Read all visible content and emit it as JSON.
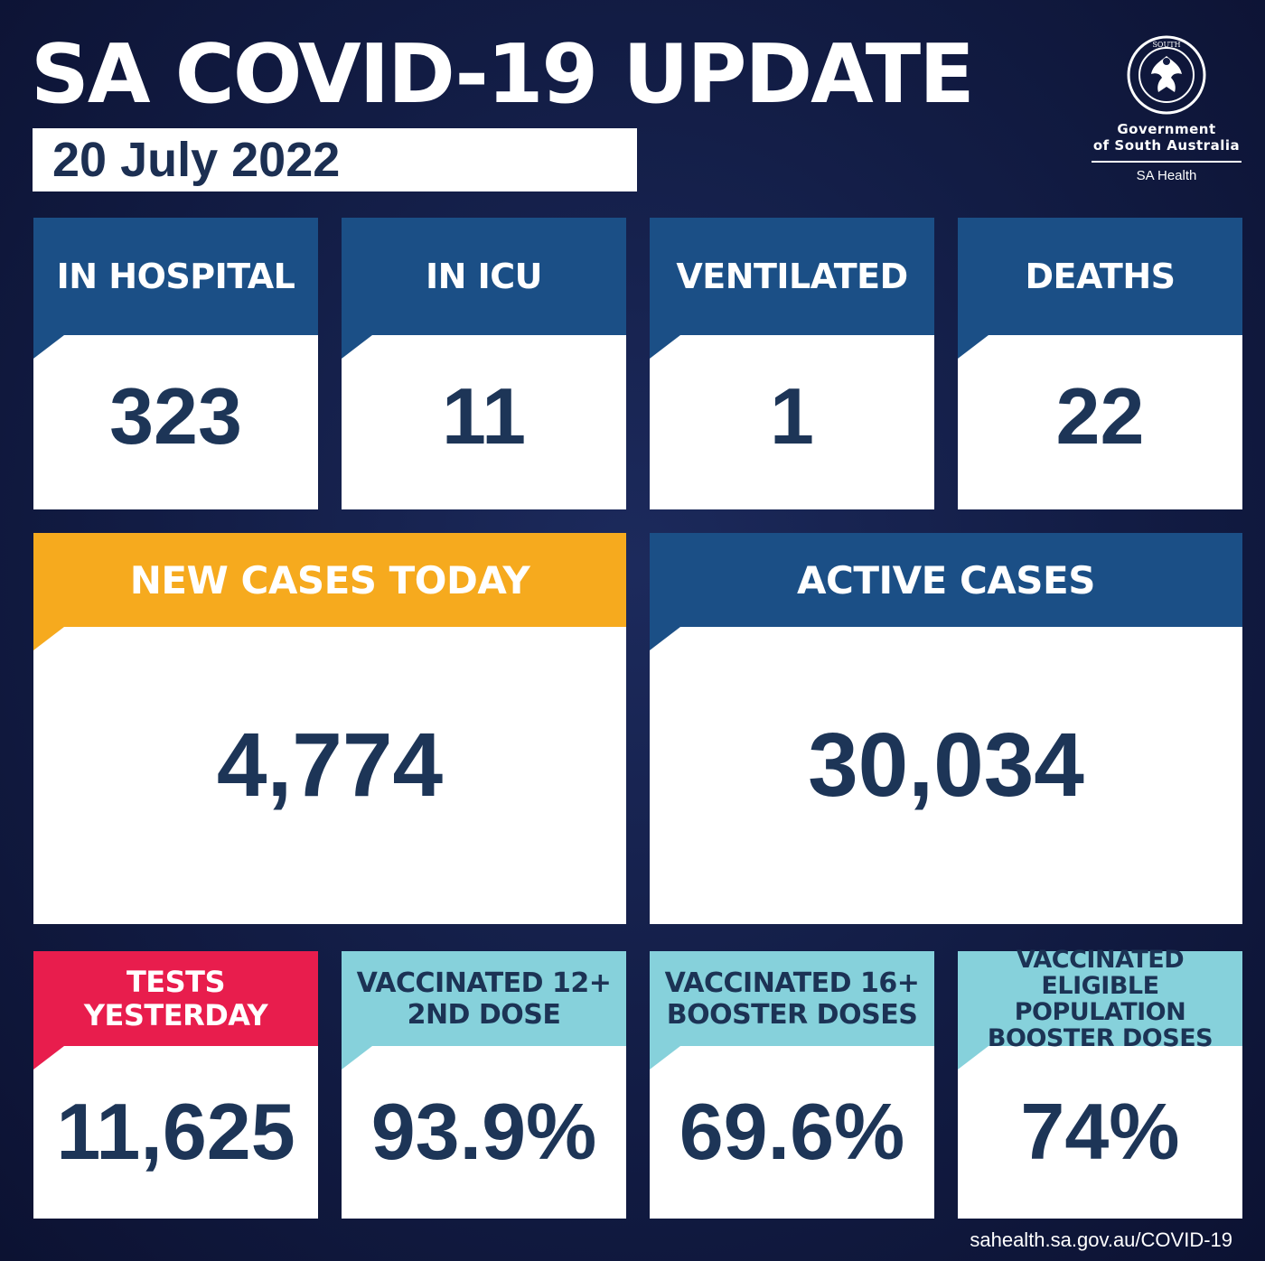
{
  "header": {
    "title": "SA COVID-19 UPDATE",
    "date": "20 July 2022"
  },
  "logo": {
    "seal_text": "SOUTH AUSTRALIA",
    "org_line1": "Government",
    "org_line2": "of South Australia",
    "dept": "SA Health"
  },
  "stats_row1": [
    {
      "label": "IN HOSPITAL",
      "value": "323"
    },
    {
      "label": "IN ICU",
      "value": "11"
    },
    {
      "label": "VENTILATED",
      "value": "1"
    },
    {
      "label": "DEATHS",
      "value": "22"
    }
  ],
  "stats_row2": [
    {
      "label": "NEW CASES TODAY",
      "value": "4,774"
    },
    {
      "label": "ACTIVE CASES",
      "value": "30,034"
    }
  ],
  "stats_row3": [
    {
      "label_line1": "TESTS",
      "label_line2": "YESTERDAY",
      "label_line3": "",
      "value": "11,625"
    },
    {
      "label_line1": "VACCINATED 12+",
      "label_line2": "2ND DOSE",
      "label_line3": "",
      "value": "93.9%"
    },
    {
      "label_line1": "VACCINATED 16+",
      "label_line2": "BOOSTER DOSES",
      "label_line3": "",
      "value": "69.6%"
    },
    {
      "label_line1": "VACCINATED",
      "label_line2": "ELIGIBLE POPULATION",
      "label_line3": "BOOSTER DOSES",
      "value": "74%"
    }
  ],
  "colors": {
    "background": "#121c44",
    "header_blue": "#1b4f86",
    "header_orange": "#f6aa1e",
    "header_red": "#e81d4d",
    "header_teal": "#86d1db",
    "value_text": "#1d3557"
  },
  "footer": {
    "url": "sahealth.sa.gov.au/COVID-19"
  }
}
